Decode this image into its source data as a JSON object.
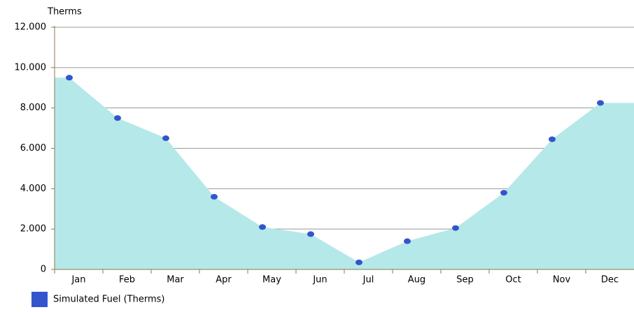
{
  "chart_data": {
    "type": "area",
    "y_axis_label": "Therms",
    "categories": [
      "Jan",
      "Feb",
      "Mar",
      "Apr",
      "May",
      "Jun",
      "Jul",
      "Aug",
      "Sep",
      "Oct",
      "Nov",
      "Dec"
    ],
    "series": [
      {
        "name": "Simulated Fuel (Therms)",
        "color": "#3355cc",
        "fill_color": "#b5e8e8",
        "values": [
          9500,
          7500,
          6500,
          3600,
          2100,
          1750,
          350,
          1400,
          2050,
          3800,
          6450,
          8250
        ]
      }
    ],
    "ylim": [
      0,
      12000
    ],
    "yticks": [
      0,
      {
        "value": 2000,
        "label": "2.000"
      },
      {
        "value": 4000,
        "label": "4.000"
      },
      {
        "value": 6000,
        "label": "6.000"
      },
      {
        "value": 8000,
        "label": "8.000"
      },
      {
        "value": 10000,
        "label": "10.000"
      },
      {
        "value": 12000,
        "label": "12.000"
      }
    ],
    "grid": true,
    "legend": "bottom-left"
  }
}
